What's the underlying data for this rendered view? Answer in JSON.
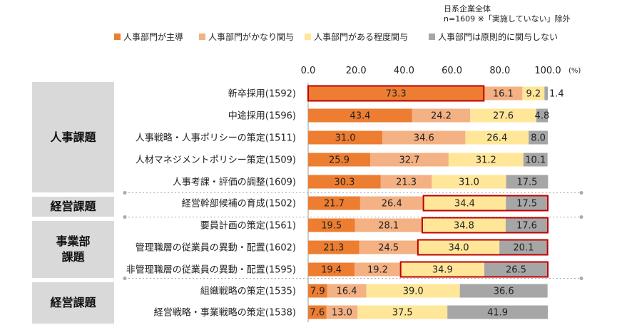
{
  "note_lines": [
    "日系企業全体",
    "n=1609 ※「実施していない」除外"
  ],
  "groups": [
    "人事課題",
    "経営課題",
    "事業部\n課題",
    "経営課題"
  ],
  "chart_data": {
    "type": "bar",
    "orientation": "horizontal",
    "stacked": true,
    "xlim": [
      0,
      100
    ],
    "x_unit": "(%)",
    "x_ticks": [
      "0.0",
      "20.0",
      "40.0",
      "60.0",
      "80.0",
      "100.0"
    ],
    "legend_position": "top",
    "categories": [
      "新卒採用(1592)",
      "中途採用(1596)",
      "人事戦略・人事ポリシーの策定(1511)",
      "人材マネジメントポリシー策定(1509)",
      "人事考課・評価の調整(1609)",
      "経営幹部候補の育成(1502)",
      "要員計画の策定(1561)",
      "管理職層の従業員の異動・配置(1602)",
      "非管理職層の従業員の異動・配置(1595)",
      "組織戦略の策定(1535)",
      "経営戦略・事業戦略の策定(1538)"
    ],
    "series": [
      {
        "name": "人事部門が主導",
        "color": "#ed7d31",
        "values": [
          73.3,
          43.4,
          31.0,
          25.9,
          30.3,
          21.7,
          19.5,
          21.3,
          19.4,
          7.9,
          7.6
        ]
      },
      {
        "name": "人事部門がかなり関与",
        "color": "#f4b183",
        "values": [
          16.1,
          24.2,
          34.6,
          32.7,
          21.3,
          26.4,
          28.1,
          24.5,
          19.2,
          16.4,
          13.0
        ]
      },
      {
        "name": "人事部門がある程度関与",
        "color": "#ffe699",
        "values": [
          9.2,
          27.6,
          26.4,
          31.2,
          31.0,
          34.4,
          34.8,
          34.0,
          34.9,
          39.0,
          37.5
        ]
      },
      {
        "name": "人事部門は原則的に関与しない",
        "color": "#a6a6a6",
        "values": [
          1.4,
          4.8,
          8.0,
          10.1,
          17.5,
          17.5,
          17.6,
          20.1,
          26.5,
          36.6,
          41.9
        ]
      }
    ],
    "labels": [
      [
        "73.3",
        "16.1",
        "9.2",
        "1.4"
      ],
      [
        "43.4",
        "24.2",
        "27.6",
        "4.8"
      ],
      [
        "31.0",
        "34.6",
        "26.4",
        "8.0"
      ],
      [
        "25.9",
        "32.7",
        "31.2",
        "10.1"
      ],
      [
        "30.3",
        "21.3",
        "31.0",
        "17.5"
      ],
      [
        "21.7",
        "26.4",
        "34.4",
        "17.5"
      ],
      [
        "19.5",
        "28.1",
        "34.8",
        "17.6"
      ],
      [
        "21.3",
        "24.5",
        "34.0",
        "20.1"
      ],
      [
        "19.4",
        "19.2",
        "34.9",
        "26.5"
      ],
      [
        "7.9",
        "16.4",
        "39.0",
        "36.6"
      ],
      [
        "7.6",
        "13.0",
        "37.5",
        "41.9"
      ]
    ],
    "highlights": [
      {
        "row": 0,
        "series": [
          0
        ]
      },
      {
        "row": 5,
        "series": [
          2,
          3
        ]
      },
      {
        "row": 6,
        "series": [
          2,
          3
        ]
      },
      {
        "row": 7,
        "series": [
          2,
          3
        ]
      },
      {
        "row": 8,
        "series": [
          2,
          3
        ]
      }
    ],
    "highlight_color": "#c00000"
  }
}
